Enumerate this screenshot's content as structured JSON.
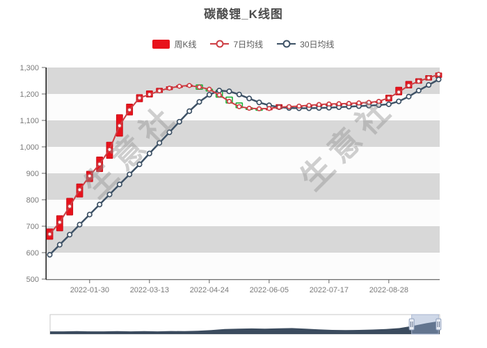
{
  "title": "碳酸锂_K线图",
  "watermark": "生意社",
  "legend": [
    {
      "label": "周K线",
      "type": "candlestick",
      "color": "#e8121c"
    },
    {
      "label": "7日均线",
      "type": "line",
      "color": "#cd3e44"
    },
    {
      "label": "30日均线",
      "type": "line",
      "color": "#3e5266"
    }
  ],
  "colors": {
    "up_candle": "#e8121c",
    "up_candle_border": "#c30d15",
    "down_candle_fill": "#ffffff",
    "down_candle_border": "#1faf3a",
    "ma7": "#cd3e44",
    "ma30": "#3e5266",
    "band_gray": "#d8d8d8",
    "band_white": "#fcfcfc",
    "axis_line": "#1a1a1a",
    "tick_text": "#7a7a7a",
    "title_text": "#4c4c4c",
    "legend_text": "#595959",
    "watermark_text": "#8f8f8f",
    "navigator_area": "#3b4b5e",
    "navigator_mask": "rgba(148,168,205,0.45)",
    "navigator_handle_fill": "#e8ecf3",
    "navigator_handle_border": "#8fa0bd",
    "navigator_border": "#c9c9c9"
  },
  "chart_data": {
    "type": "candlestick",
    "title": "碳酸锂_K线图",
    "xlabel": "",
    "ylabel": "",
    "ylim": [
      500,
      1300
    ],
    "y_tick_values": [
      500,
      600,
      700,
      800,
      900,
      1000,
      1100,
      1200,
      1300
    ],
    "y_tick_labels": [
      "500",
      "600",
      "700",
      "800",
      "900",
      "1,000",
      "1,100",
      "1,200",
      "1,300"
    ],
    "x_tick_labels": [
      "2022-01-30",
      "2022-03-13",
      "2022-04-24",
      "2022-06-05",
      "2022-07-17",
      "2022-08-28"
    ],
    "x_tick_indices": [
      4,
      10,
      16,
      22,
      28,
      34
    ],
    "grid": "alternating-horizontal-bands",
    "legend_position": "top-center",
    "dates": [
      "2022-01-02",
      "2022-01-09",
      "2022-01-16",
      "2022-01-23",
      "2022-01-30",
      "2022-02-06",
      "2022-02-13",
      "2022-02-20",
      "2022-02-27",
      "2022-03-06",
      "2022-03-13",
      "2022-03-20",
      "2022-03-27",
      "2022-04-03",
      "2022-04-10",
      "2022-04-17",
      "2022-04-24",
      "2022-05-01",
      "2022-05-08",
      "2022-05-15",
      "2022-05-22",
      "2022-05-29",
      "2022-06-05",
      "2022-06-12",
      "2022-06-19",
      "2022-06-26",
      "2022-07-03",
      "2022-07-10",
      "2022-07-17",
      "2022-07-24",
      "2022-07-31",
      "2022-08-07",
      "2022-08-14",
      "2022-08-21",
      "2022-08-28",
      "2022-09-04",
      "2022-09-11",
      "2022-09-18",
      "2022-09-25",
      "2022-10-02"
    ],
    "series": [
      {
        "name": "周K线",
        "type": "candlestick",
        "open": [
          650,
          682,
          742,
          810,
          868,
          906,
          956,
          1040,
          1120,
          1170,
          1188,
          1205,
          1216,
          1224,
          1228,
          1234,
          1218,
          1214,
          1188,
          1166,
          1148,
          1145,
          1144,
          1144,
          1152,
          1153,
          1155,
          1158,
          1160,
          1162,
          1163,
          1165,
          1167,
          1170,
          1173,
          1196,
          1222,
          1240,
          1252,
          1262
        ],
        "close": [
          690,
          740,
          806,
          860,
          908,
          962,
          1018,
          1122,
          1162,
          1198,
          1212,
          1222,
          1228,
          1232,
          1234,
          1218,
          1214,
          1188,
          1166,
          1148,
          1145,
          1144,
          1146,
          1160,
          1154,
          1155,
          1158,
          1160,
          1162,
          1163,
          1165,
          1167,
          1170,
          1173,
          1196,
          1226,
          1248,
          1258,
          1270,
          1280
        ]
      },
      {
        "name": "7日均线",
        "type": "line",
        "values": [
          670,
          715,
          775,
          838,
          890,
          935,
          990,
          1080,
          1140,
          1185,
          1198,
          1212,
          1222,
          1229,
          1232,
          1226,
          1218,
          1196,
          1172,
          1152,
          1146,
          1144,
          1145,
          1150,
          1152,
          1154,
          1157,
          1160,
          1162,
          1163,
          1164,
          1166,
          1168,
          1172,
          1185,
          1207,
          1232,
          1248,
          1261,
          1274
        ]
      },
      {
        "name": "30日均线",
        "type": "line",
        "values": [
          592,
          630,
          668,
          706,
          744,
          782,
          820,
          858,
          896,
          934,
          975,
          1015,
          1055,
          1095,
          1135,
          1170,
          1197,
          1213,
          1210,
          1198,
          1183,
          1168,
          1157,
          1150,
          1147,
          1146,
          1146,
          1147,
          1148,
          1150,
          1152,
          1154,
          1156,
          1158,
          1161,
          1172,
          1190,
          1213,
          1234,
          1255
        ]
      }
    ]
  },
  "navigator": {
    "values": [
      0.15,
      0.15,
      0.16,
      0.15,
      0.15,
      0.16,
      0.15,
      0.16,
      0.15,
      0.17,
      0.16,
      0.18,
      0.22,
      0.28,
      0.3,
      0.31,
      0.3,
      0.32,
      0.33,
      0.3,
      0.26,
      0.23,
      0.22,
      0.23,
      0.25,
      0.28,
      0.33,
      0.45,
      0.6,
      0.72
    ],
    "selection": [
      0.928,
      0.997
    ]
  }
}
